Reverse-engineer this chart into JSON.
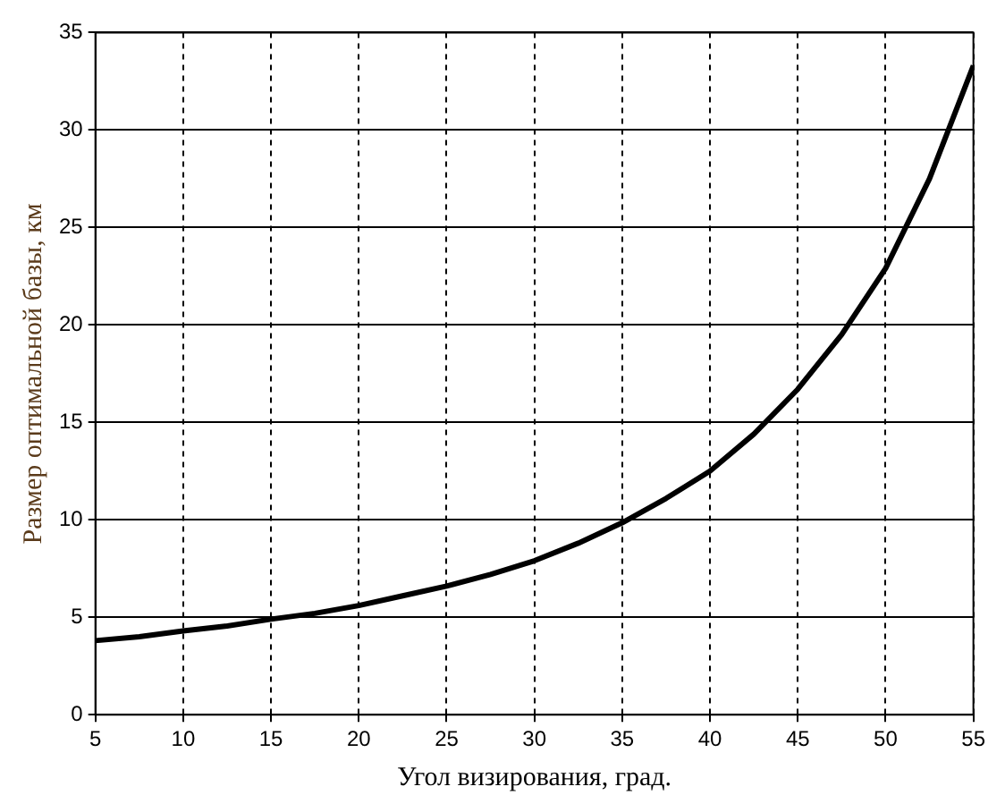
{
  "chart_data": {
    "type": "line",
    "xlabel": "Угол визирования, град.",
    "ylabel": "Размер оптимальной базы, км",
    "x": [
      5,
      7.5,
      10,
      12.5,
      15,
      17.5,
      20,
      22.5,
      25,
      27.5,
      30,
      32.5,
      35,
      37.5,
      40,
      42.5,
      45,
      47.5,
      50,
      52.5,
      55
    ],
    "series": [
      {
        "color": "#000000",
        "values": [
          3.8,
          4.0,
          4.3,
          4.55,
          4.9,
          5.2,
          5.6,
          6.1,
          6.6,
          7.2,
          7.9,
          8.8,
          9.85,
          11.1,
          12.5,
          14.4,
          16.7,
          19.5,
          22.9,
          27.5,
          33.3
        ]
      }
    ],
    "xlim": [
      5,
      55
    ],
    "xticks": [
      5,
      10,
      15,
      20,
      25,
      30,
      35,
      40,
      45,
      50,
      55
    ],
    "ylim": [
      0,
      35
    ],
    "yticks": [
      0,
      5,
      10,
      15,
      20,
      25,
      30,
      35
    ],
    "grid": true,
    "legend": false,
    "marker": "none",
    "line_style": "solid"
  }
}
